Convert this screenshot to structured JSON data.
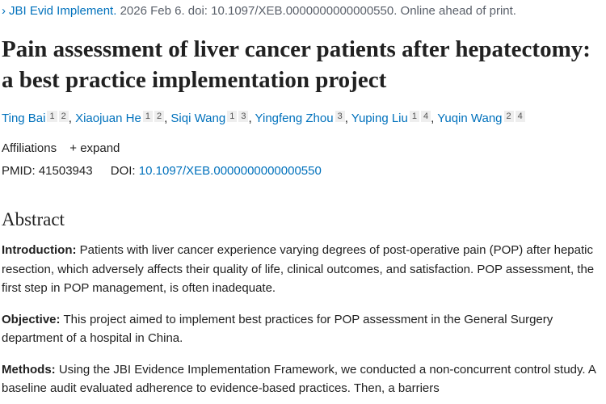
{
  "citation": {
    "journal": "JBI Evid Implement.",
    "rest": "2026 Feb 6. doi: 10.1097/XEB.0000000000000550. Online ahead of print."
  },
  "title": "Pain assessment of liver cancer patients after hepatectomy: a best practice implementation project",
  "authors": [
    {
      "name": "Ting Bai",
      "affs": [
        "1",
        "2"
      ]
    },
    {
      "name": "Xiaojuan He",
      "affs": [
        "1",
        "2"
      ]
    },
    {
      "name": "Siqi Wang",
      "affs": [
        "1",
        "3"
      ]
    },
    {
      "name": "Yingfeng Zhou",
      "affs": [
        "3"
      ]
    },
    {
      "name": "Yuping Liu",
      "affs": [
        "1",
        "4"
      ]
    },
    {
      "name": "Yuqin Wang",
      "affs": [
        "2",
        "4"
      ]
    }
  ],
  "affiliations": {
    "label": "Affiliations",
    "expand": "+ expand"
  },
  "ids": {
    "pmid_label": "PMID:",
    "pmid": "41503943",
    "doi_label": "DOI:",
    "doi": "10.1097/XEB.0000000000000550"
  },
  "abstract": {
    "heading": "Abstract",
    "sections": [
      {
        "label": "Introduction:",
        "text": "Patients with liver cancer experience varying degrees of post-operative pain (POP) after hepatic resection, which adversely affects their quality of life, clinical outcomes, and satisfaction. POP assessment, the first step in POP management, is often inadequate."
      },
      {
        "label": "Objective:",
        "text": "This project aimed to implement best practices for POP assessment in the General Surgery department of a hospital in China."
      },
      {
        "label": "Methods:",
        "text": "Using the JBI Evidence Implementation Framework, we conducted a non-concurrent control study. A baseline audit evaluated adherence to evidence-based practices. Then, a barriers"
      }
    ]
  }
}
